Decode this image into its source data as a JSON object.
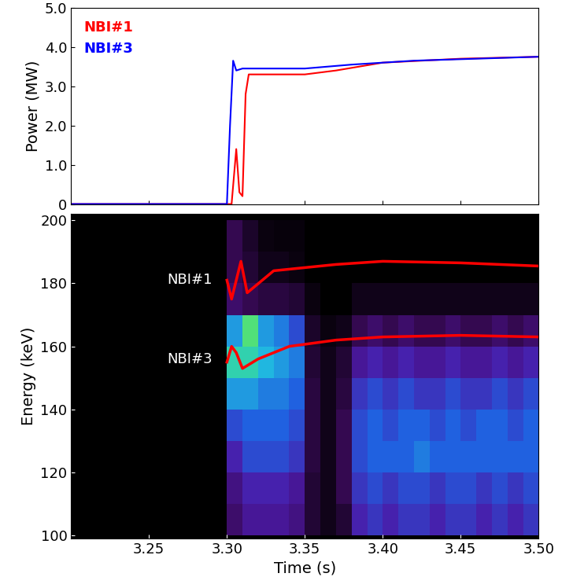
{
  "chart_data": [
    {
      "type": "line",
      "y_label": "Power (MW)",
      "xlim": [
        3.2,
        3.5
      ],
      "xticks": [
        3.25,
        {
          "value": 3.3,
          "label": "3.30"
        },
        3.35,
        {
          "value": 3.4,
          "label": "3.40"
        },
        3.45,
        {
          "value": 3.5,
          "label": "3.50"
        }
      ],
      "ylim": [
        0,
        5
      ],
      "yticks": [
        0,
        {
          "value": 1,
          "label": "1.0"
        },
        {
          "value": 2,
          "label": "2.0"
        },
        {
          "value": 3,
          "label": "3.0"
        },
        {
          "value": 4,
          "label": "4.0"
        },
        {
          "value": 5,
          "label": "5.0"
        }
      ],
      "tick_labels": "y",
      "legend": "upper left",
      "series": [
        {
          "name": "NBI#1",
          "color": "#ff0000",
          "x": [
            3.2,
            3.303,
            3.306,
            3.308,
            3.31,
            3.312,
            3.314,
            3.35,
            3.37,
            3.4,
            3.45,
            3.5
          ],
          "values": [
            0,
            0,
            1.4,
            0.3,
            0.2,
            2.8,
            3.3,
            3.3,
            3.4,
            3.6,
            3.7,
            3.75
          ]
        },
        {
          "name": "NBI#3",
          "color": "#0000ff",
          "x": [
            3.2,
            3.3,
            3.302,
            3.304,
            3.306,
            3.31,
            3.35,
            3.38,
            3.42,
            3.46,
            3.5
          ],
          "values": [
            0,
            0,
            2.0,
            3.65,
            3.4,
            3.45,
            3.45,
            3.55,
            3.65,
            3.7,
            3.75
          ]
        }
      ]
    },
    {
      "type": "heatmap",
      "x_label": "Time (s)",
      "y_label": "Energy (keV)",
      "xlim": [
        3.2,
        3.5
      ],
      "xticks": [
        3.25,
        {
          "value": 3.3,
          "label": "3.30"
        },
        3.35,
        {
          "value": 3.4,
          "label": "3.40"
        },
        3.45,
        {
          "value": 3.5,
          "label": "3.50"
        }
      ],
      "ylim": [
        99,
        202
      ],
      "yticks": [
        100,
        120,
        140,
        160,
        180,
        200
      ],
      "x_edges": [
        3.2,
        3.21,
        3.22,
        3.23,
        3.24,
        3.25,
        3.26,
        3.27,
        3.28,
        3.29,
        3.3,
        3.31,
        3.32,
        3.33,
        3.34,
        3.35,
        3.36,
        3.37,
        3.38,
        3.39,
        3.4,
        3.41,
        3.42,
        3.43,
        3.44,
        3.45,
        3.46,
        3.47,
        3.48,
        3.49,
        3.5
      ],
      "y_edges": [
        100,
        110,
        120,
        130,
        140,
        150,
        160,
        170,
        180,
        190,
        200
      ],
      "color_range": [
        0,
        1
      ],
      "cells": [
        [
          0,
          0,
          0,
          0,
          0,
          0,
          0,
          0,
          0,
          0,
          0.2,
          0.3,
          0.3,
          0.3,
          0.25,
          0.1,
          0.05,
          0.1,
          0.35,
          0.4,
          0.35,
          0.4,
          0.4,
          0.35,
          0.4,
          0.4,
          0.35,
          0.4,
          0.35,
          0.4
        ],
        [
          0,
          0,
          0,
          0,
          0,
          0,
          0,
          0,
          0,
          0,
          0.25,
          0.35,
          0.35,
          0.35,
          0.3,
          0.1,
          0.05,
          0.15,
          0.4,
          0.45,
          0.4,
          0.45,
          0.45,
          0.4,
          0.45,
          0.45,
          0.4,
          0.45,
          0.4,
          0.45
        ],
        [
          0,
          0,
          0,
          0,
          0,
          0,
          0,
          0,
          0,
          0,
          0.35,
          0.45,
          0.45,
          0.45,
          0.4,
          0.12,
          0.05,
          0.15,
          0.45,
          0.5,
          0.5,
          0.5,
          0.55,
          0.5,
          0.5,
          0.5,
          0.5,
          0.5,
          0.5,
          0.5
        ],
        [
          0,
          0,
          0,
          0,
          0,
          0,
          0,
          0,
          0,
          0,
          0.45,
          0.5,
          0.5,
          0.5,
          0.45,
          0.12,
          0.05,
          0.15,
          0.45,
          0.5,
          0.45,
          0.5,
          0.5,
          0.45,
          0.5,
          0.45,
          0.5,
          0.5,
          0.45,
          0.5
        ],
        [
          0,
          0,
          0,
          0,
          0,
          0,
          0,
          0,
          0,
          0,
          0.6,
          0.6,
          0.55,
          0.55,
          0.5,
          0.12,
          0.05,
          0.12,
          0.4,
          0.45,
          0.4,
          0.45,
          0.4,
          0.4,
          0.45,
          0.4,
          0.4,
          0.45,
          0.4,
          0.45
        ],
        [
          0,
          0,
          0,
          0,
          0,
          0,
          0,
          0,
          0,
          0,
          0.75,
          0.75,
          0.65,
          0.6,
          0.55,
          0.1,
          0.05,
          0.1,
          0.3,
          0.35,
          0.3,
          0.35,
          0.3,
          0.3,
          0.35,
          0.3,
          0.3,
          0.35,
          0.3,
          0.35
        ],
        [
          0,
          0,
          0,
          0,
          0,
          0,
          0,
          0,
          0,
          0,
          0.6,
          0.85,
          0.6,
          0.55,
          0.45,
          0.08,
          0.03,
          0.05,
          0.15,
          0.2,
          0.15,
          0.2,
          0.15,
          0.15,
          0.2,
          0.15,
          0.15,
          0.2,
          0.15,
          0.2
        ],
        [
          0,
          0,
          0,
          0,
          0,
          0,
          0,
          0,
          0,
          0,
          0.2,
          0.15,
          0.12,
          0.12,
          0.1,
          0.03,
          0,
          0,
          0.05,
          0.05,
          0.05,
          0.05,
          0.05,
          0.05,
          0.05,
          0.05,
          0.05,
          0.05,
          0.05,
          0.05
        ],
        [
          0,
          0,
          0,
          0,
          0,
          0,
          0,
          0,
          0,
          0,
          0.15,
          0.1,
          0.05,
          0.05,
          0.03,
          0,
          0,
          0,
          0,
          0,
          0,
          0,
          0,
          0,
          0,
          0,
          0,
          0,
          0,
          0
        ],
        [
          0,
          0,
          0,
          0,
          0,
          0,
          0,
          0,
          0,
          0,
          0.15,
          0.08,
          0.03,
          0.02,
          0.02,
          0,
          0,
          0,
          0,
          0,
          0,
          0,
          0,
          0,
          0,
          0,
          0,
          0,
          0,
          0
        ]
      ],
      "series": [
        {
          "name": "NBI#1",
          "type": "line",
          "color": "#ff0000",
          "x": [
            3.3,
            3.303,
            3.309,
            3.313,
            3.33,
            3.37,
            3.4,
            3.45,
            3.5
          ],
          "values": [
            181,
            175,
            187,
            177,
            184,
            186,
            187,
            186.5,
            185.5
          ]
        },
        {
          "name": "NBI#3",
          "type": "line",
          "color": "#ff0000",
          "x": [
            3.3,
            3.303,
            3.306,
            3.31,
            3.32,
            3.34,
            3.37,
            3.4,
            3.45,
            3.5
          ],
          "values": [
            155,
            160,
            158,
            153,
            156,
            160,
            162,
            163,
            163.5,
            163
          ]
        }
      ],
      "annotations": [
        {
          "text": "NBI#1",
          "x": 3.276,
          "y": 181
        },
        {
          "text": "NBI#3",
          "x": 3.276,
          "y": 156
        }
      ]
    }
  ]
}
